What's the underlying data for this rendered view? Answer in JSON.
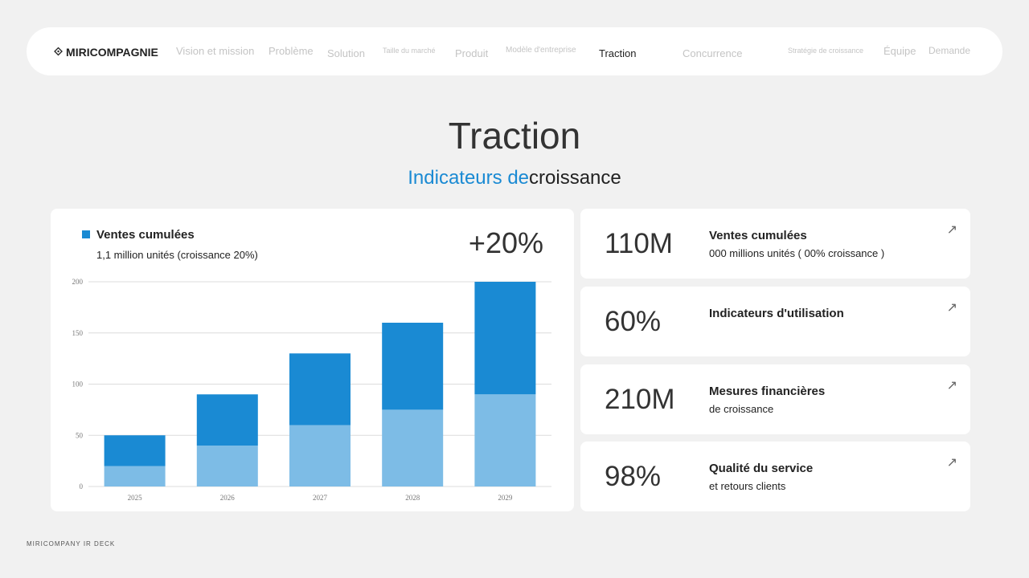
{
  "nav": {
    "logo": "MIRICOMPAGNIE",
    "items": [
      "Vision et mission",
      "Problème",
      "Solution",
      "Taille du marché",
      "Produit",
      "Modèle d'entreprise",
      "Traction",
      "Concurrence",
      "Stratégie de croissance",
      "Équipe",
      "Demande"
    ]
  },
  "title": "Traction",
  "subtitle": {
    "a": "Indicateurs de",
    "b": "croissance"
  },
  "chart_card": {
    "legend": "Ventes cumulées",
    "sub": "1,1 million unités (croissance 20%)",
    "pct": "+20%"
  },
  "chart_data": {
    "type": "bar",
    "stacked": true,
    "categories": [
      "2025",
      "2026",
      "2027",
      "2028",
      "2029"
    ],
    "series": [
      {
        "name": "base",
        "color": "#7dbce6",
        "values": [
          20,
          40,
          60,
          75,
          90
        ]
      },
      {
        "name": "Ventes cumulées",
        "color": "#1a8ad3",
        "values": [
          30,
          50,
          70,
          85,
          110
        ]
      }
    ],
    "yticks": [
      0,
      50,
      100,
      150,
      200
    ],
    "ylim": [
      0,
      200
    ],
    "grid": true
  },
  "kpis": [
    {
      "value": "110M",
      "title": "Ventes cumulées",
      "sub": " 000 millions unités ( 00% croissance )"
    },
    {
      "value": "60%",
      "title": "Indicateurs d'utilisation",
      "sub": ""
    },
    {
      "value": "210M",
      "title": "Mesures financières",
      "sub": "de croissance"
    },
    {
      "value": "98%",
      "title": "Qualité du service",
      "sub": "et retours clients"
    }
  ],
  "footer": "MIRICOMPANY IR DECK"
}
